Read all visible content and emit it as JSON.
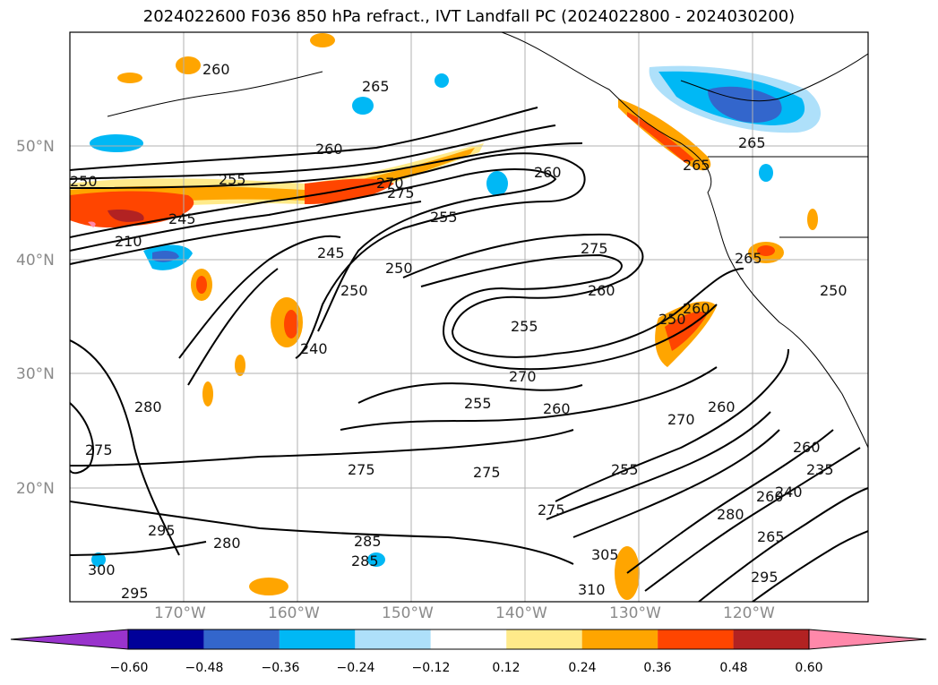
{
  "title": "2024022600 F036 850 hPa refract., IVT Landfall PC (2024022800 - 2024030200)",
  "lat_labels": [
    "50°N",
    "40°N",
    "30°N",
    "20°N"
  ],
  "lon_labels": [
    "170°W",
    "160°W",
    "150°W",
    "140°W",
    "130°W",
    "120°W"
  ],
  "contour_labels": [
    "260",
    "265",
    "260",
    "250",
    "255",
    "270",
    "275",
    "245",
    "210",
    "255",
    "260",
    "275",
    "245",
    "250",
    "260",
    "260",
    "265",
    "255",
    "275",
    "255",
    "260",
    "250",
    "265",
    "240",
    "270",
    "280",
    "265",
    "260",
    "270",
    "260",
    "275",
    "275",
    "275",
    "255",
    "285",
    "280",
    "295",
    "285",
    "300",
    "295",
    "305",
    "310",
    "280",
    "240",
    "260",
    "235",
    "265",
    "295",
    "250",
    "250"
  ],
  "colorbar": {
    "ticks": [
      "−0.60",
      "−0.48",
      "−0.36",
      "−0.24",
      "−0.12",
      "0.12",
      "0.24",
      "0.36",
      "0.48",
      "0.60"
    ],
    "colors": [
      "#9933cc",
      "#000099",
      "#3366cc",
      "#00b8f5",
      "#aee0fa",
      "#ffffff",
      "#ffea8a",
      "#ffa500",
      "#ff4500",
      "#b22222",
      "#ff88aa"
    ]
  },
  "colors": {
    "land_line": "#000000",
    "grid": "#b0b0b0"
  }
}
